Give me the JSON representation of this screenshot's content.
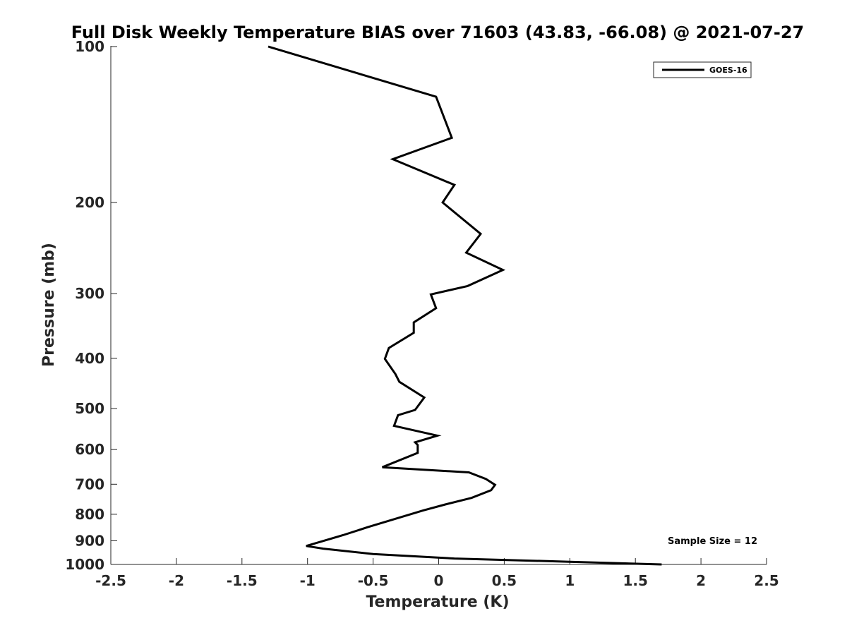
{
  "chart_data": {
    "type": "line",
    "title": "Full Disk Weekly Temperature BIAS over 71603 (43.83, -66.08) @ 2021-07-27",
    "xlabel": "Temperature (K)",
    "ylabel": "Pressure (mb)",
    "xlim": [
      -2.5,
      2.5
    ],
    "ylim": [
      1000,
      100
    ],
    "yscale": "log",
    "y_reversed": true,
    "xticks": [
      "-2.5",
      "-2",
      "-1.5",
      "-1",
      "-0.5",
      "0",
      "0.5",
      "1",
      "1.5",
      "2",
      "2.5"
    ],
    "xtick_values": [
      -2.5,
      -2,
      -1.5,
      -1,
      -0.5,
      0,
      0.5,
      1,
      1.5,
      2,
      2.5
    ],
    "yticks": [
      "100",
      "200",
      "300",
      "400",
      "500",
      "600",
      "700",
      "800",
      "900",
      "1000"
    ],
    "ytick_values": [
      100,
      200,
      300,
      400,
      500,
      600,
      700,
      800,
      900,
      1000
    ],
    "grid": false,
    "legend_position": "top-right",
    "annotation": "Sample Size = 12",
    "series": [
      {
        "name": "GOES-16",
        "color": "#000000",
        "points": [
          [
            -1.3,
            100
          ],
          [
            -0.02,
            125
          ],
          [
            0.1,
            150
          ],
          [
            -0.35,
            165
          ],
          [
            0.12,
            185
          ],
          [
            0.03,
            200
          ],
          [
            0.32,
            230
          ],
          [
            0.21,
            250
          ],
          [
            0.49,
            270
          ],
          [
            0.22,
            290
          ],
          [
            -0.06,
            301
          ],
          [
            -0.02,
            320
          ],
          [
            -0.19,
            341
          ],
          [
            -0.19,
            357
          ],
          [
            -0.38,
            382
          ],
          [
            -0.41,
            401
          ],
          [
            -0.33,
            429
          ],
          [
            -0.3,
            444
          ],
          [
            -0.11,
            476
          ],
          [
            -0.18,
            503
          ],
          [
            -0.31,
            515
          ],
          [
            -0.34,
            540
          ],
          [
            -0.01,
            564
          ],
          [
            -0.18,
            581
          ],
          [
            -0.16,
            588
          ],
          [
            -0.16,
            609
          ],
          [
            -0.43,
            649
          ],
          [
            0.23,
            664
          ],
          [
            0.36,
            684
          ],
          [
            0.43,
            702
          ],
          [
            0.4,
            719
          ],
          [
            0.25,
            744
          ],
          [
            0.05,
            766
          ],
          [
            -0.12,
            787
          ],
          [
            -0.54,
            847
          ],
          [
            -0.73,
            878
          ],
          [
            -1.01,
            921
          ],
          [
            -0.88,
            932
          ],
          [
            -0.5,
            955
          ],
          [
            0.12,
            974
          ],
          [
            1.0,
            988
          ],
          [
            1.7,
            1000
          ]
        ]
      }
    ]
  }
}
